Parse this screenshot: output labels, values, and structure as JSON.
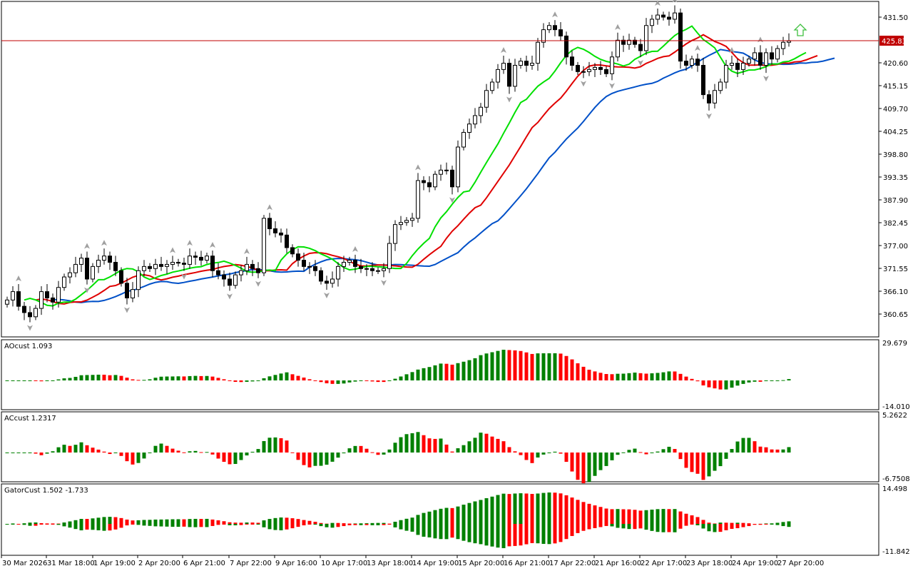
{
  "colors": {
    "background": "#ffffff",
    "frame": "#000000",
    "bull_histogram": "#008000",
    "bear_histogram": "#ff0000",
    "jaw_line": "#0050c8",
    "teeth_line": "#e00000",
    "lips_line": "#00e000",
    "price_line": "#c00000",
    "price_badge": "#c00000",
    "fractal": "#a0a0a0",
    "signal_arrow": "#40c040"
  },
  "main_pane": {
    "price_ticks": [
      "431.50",
      "425.83",
      "420.60",
      "415.15",
      "409.70",
      "404.25",
      "398.80",
      "393.35",
      "387.90",
      "382.45",
      "377.00",
      "371.55",
      "366.10",
      "360.65"
    ],
    "current_price": "425.83",
    "signal_icon": "up-arrow-icon"
  },
  "panes": [
    {
      "label": "AOcust 1.093",
      "max": "29.679",
      "min": "-14.010"
    },
    {
      "label": "ACcust 1.2317",
      "max": "5.2622",
      "min": "-6.7508"
    },
    {
      "label": "GatorCust 1.502 -1.733",
      "max": "14.498",
      "min": "-11.842"
    }
  ],
  "time_labels": [
    "30 Mar 2026",
    "31 Mar 18:00",
    "1 Apr 19:00",
    "2 Apr 20:00",
    "6 Apr 21:00",
    "7 Apr 22:00",
    "9 Apr 16:00",
    "10 Apr 17:00",
    "13 Apr 18:00",
    "14 Apr 19:00",
    "15 Apr 20:00",
    "16 Apr 21:00",
    "17 Apr 22:00",
    "21 Apr 16:00",
    "22 Apr 17:00",
    "23 Apr 18:00",
    "24 Apr 19:00",
    "27 Apr 20:00"
  ],
  "chart_data": {
    "type": "candlestick",
    "closes": [
      364.0,
      366.0,
      362.5,
      361.0,
      360.0,
      362.0,
      366.0,
      364.5,
      363.5,
      367.0,
      369.5,
      370.5,
      372.5,
      374.0,
      369.0,
      372.0,
      373.5,
      374.5,
      373.0,
      371.0,
      368.0,
      364.5,
      366.5,
      371.0,
      372.0,
      371.5,
      372.5,
      372.0,
      372.5,
      373.0,
      372.8,
      372.5,
      374.5,
      374.2,
      373.5,
      374.5,
      371.0,
      370.0,
      369.0,
      367.5,
      370.0,
      371.0,
      372.5,
      371.5,
      370.5,
      383.5,
      381.0,
      380.0,
      379.5,
      376.5,
      375.0,
      373.5,
      372.0,
      372.0,
      371.0,
      368.5,
      368.0,
      369.0,
      372.0,
      373.0,
      373.5,
      372.0,
      371.5,
      371.5,
      371.0,
      371.0,
      371.5,
      377.5,
      382.0,
      382.5,
      383.0,
      383.5,
      392.5,
      392.0,
      391.0,
      394.0,
      395.0,
      395.0,
      391.0,
      400.5,
      404.0,
      406.0,
      408.0,
      410.0,
      414.0,
      416.0,
      419.0,
      420.5,
      415.0,
      420.0,
      421.0,
      420.0,
      420.5,
      425.5,
      428.5,
      429.5,
      428.5,
      427.0,
      422.0,
      420.0,
      418.5,
      418.5,
      419.0,
      419.5,
      419.0,
      418.0,
      422.0,
      426.0,
      425.0,
      426.0,
      425.0,
      423.5,
      429.5,
      431.0,
      432.0,
      431.5,
      431.0,
      432.5,
      421.0,
      420.0,
      421.5,
      420.0,
      413.0,
      411.0,
      414.0,
      416.0,
      420.0,
      420.5,
      419.0,
      420.5,
      421.5,
      423.0,
      420.0,
      423.0,
      421.5,
      424.0,
      425.5,
      425.83
    ]
  }
}
